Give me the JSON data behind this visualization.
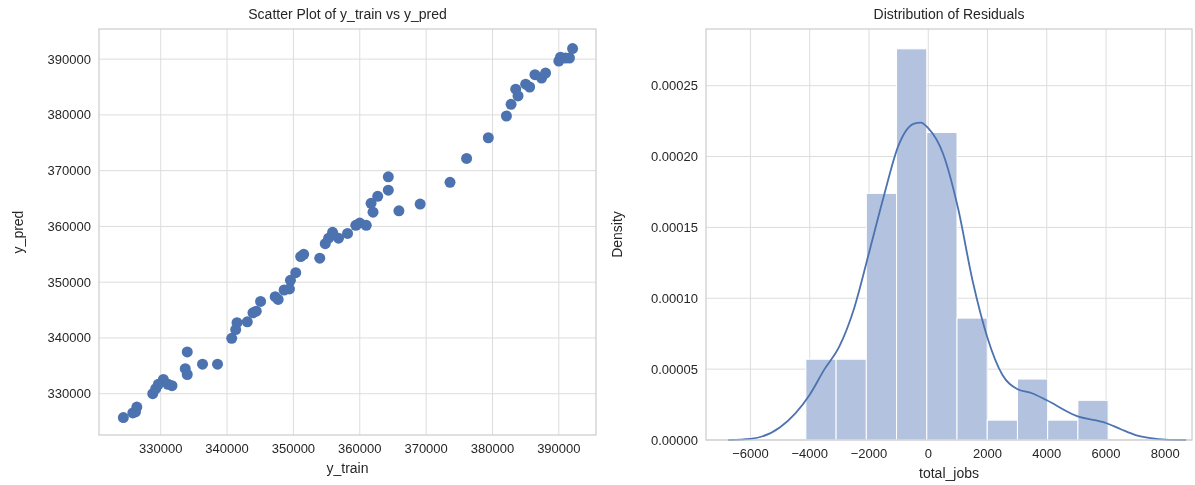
{
  "chart_data": [
    {
      "type": "scatter",
      "title": "Scatter Plot of y_train vs y_pred",
      "xlabel": "y_train",
      "ylabel": "y_pred",
      "xlim": [
        320700,
        395600
      ],
      "ylim": [
        322600,
        395400
      ],
      "xticks": [
        330000,
        340000,
        350000,
        360000,
        370000,
        380000,
        390000
      ],
      "yticks": [
        330000,
        340000,
        350000,
        360000,
        370000,
        380000,
        390000
      ],
      "grid": true,
      "marker": "circle",
      "series": [
        {
          "color": "#4c72b0",
          "x": [
            324370,
            325800,
            326200,
            326400,
            328800,
            329250,
            329650,
            330400,
            331100,
            331700,
            333700,
            334000,
            334000,
            336300,
            338560,
            340700,
            341300,
            341500,
            343050,
            343900,
            344400,
            345050,
            347250,
            347700,
            348600,
            349400,
            349550,
            350350,
            351100,
            351550,
            353970,
            354800,
            355300,
            355900,
            356800,
            358160,
            359400,
            360000,
            360980,
            361700,
            362000,
            362700,
            364300,
            364300,
            365900,
            369100,
            373600,
            376100,
            379370,
            382100,
            382800,
            383500,
            383850,
            385000,
            385600,
            386400,
            387400,
            388000,
            390000,
            390250,
            391000,
            391600,
            392070
          ],
          "values": [
            325720,
            326550,
            326750,
            327600,
            330000,
            330900,
            331700,
            332550,
            331700,
            331450,
            334500,
            333450,
            337500,
            335300,
            335300,
            339930,
            341500,
            342750,
            342900,
            344500,
            344800,
            346550,
            347400,
            346900,
            348600,
            348800,
            350340,
            351700,
            354600,
            355000,
            354300,
            356900,
            357900,
            358950,
            357900,
            358750,
            360200,
            360600,
            360200,
            364140,
            362550,
            365400,
            368900,
            366500,
            362800,
            364000,
            367900,
            372200,
            375900,
            379800,
            381900,
            384600,
            383400,
            385500,
            385000,
            387200,
            386600,
            387500,
            389650,
            390340,
            390200,
            390200,
            391900
          ]
        }
      ]
    },
    {
      "type": "histogram",
      "title": "Distribution of Residuals",
      "xlabel": "total_jobs",
      "ylabel": "Density",
      "xlim": [
        -7500,
        8900
      ],
      "ylim": [
        0,
        0.00029
      ],
      "xticks": [
        -6000,
        -4000,
        -2000,
        0,
        2000,
        4000,
        6000,
        8000
      ],
      "yticks": [
        {
          "value": 0,
          "label": "0.00000"
        },
        {
          "value": 5e-05,
          "label": "0.00005"
        },
        {
          "value": 0.0001,
          "label": "0.00010"
        },
        {
          "value": 0.00015,
          "label": "0.00015"
        },
        {
          "value": 0.0002,
          "label": "0.00020"
        },
        {
          "value": 0.00025,
          "label": "0.00025"
        }
      ],
      "grid": true,
      "series": [
        {
          "color": "#b3c3df",
          "bins": [
            -4130,
            -3110,
            -2090,
            -1070,
            -50,
            970,
            1990,
            3010,
            4030,
            5050,
            6070
          ],
          "values": [
            5.7e-05,
            5.7e-05,
            0.000174,
            0.000276,
            0.000217,
            8.6e-05,
            1.4e-05,
            4.3e-05,
            1.4e-05,
            2.8e-05
          ]
        },
        {
          "type": "line",
          "color": "#4c72b0",
          "x": [
            -6750,
            -6000,
            -5000,
            -4000,
            -3500,
            -3000,
            -2500,
            -2000,
            -1500,
            -1000,
            -500,
            -250,
            0,
            500,
            1000,
            1500,
            2000,
            2500,
            3000,
            3500,
            4000,
            5000,
            6000,
            6500,
            7000,
            7500,
            8000,
            8700
          ],
          "values": [
            0,
            8e-07,
            9e-06,
            3.2e-05,
            5e-05,
            6.6e-05,
            9.3e-05,
            0.000132,
            0.000172,
            0.000208,
            0.000223,
            0.000224,
            0.00022,
            0.000202,
            0.000164,
            0.000112,
            7.2e-05,
            4.6e-05,
            3.6e-05,
            3.3e-05,
            2.8e-05,
            1.7e-05,
            1.2e-05,
            7.6e-06,
            3.5e-06,
            1.4e-06,
            3e-07,
            0
          ]
        }
      ]
    }
  ]
}
